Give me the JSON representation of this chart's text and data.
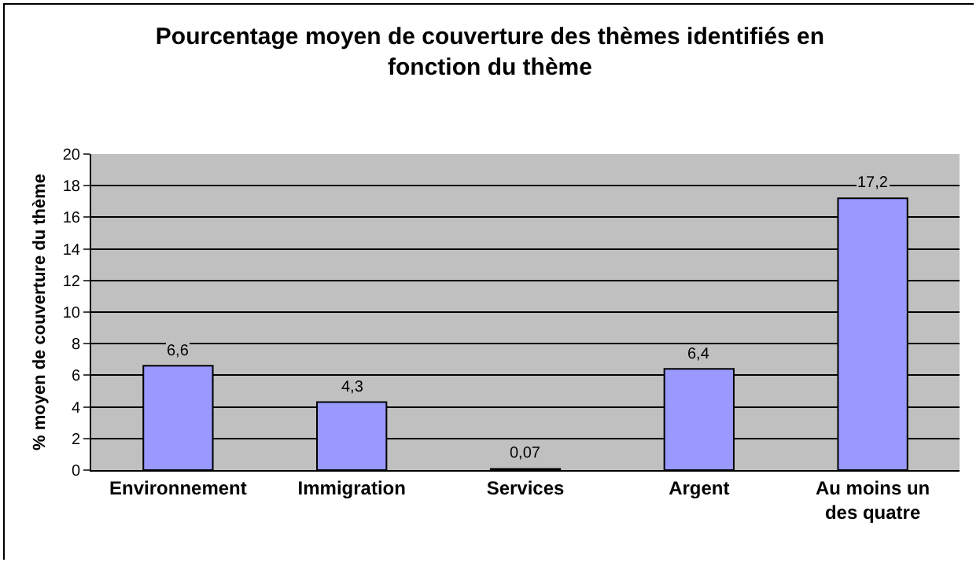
{
  "chart_data": {
    "type": "bar",
    "title": "Pourcentage moyen de couverture des thèmes identifiés en fonction du thème",
    "ylabel": "% moyen de couverture du thème",
    "categories": [
      "Environnement",
      "Immigration",
      "Services",
      "Argent",
      "Au moins un des quatre"
    ],
    "values": [
      6.6,
      4.3,
      0.07,
      6.4,
      17.2
    ],
    "value_labels": [
      "6,6",
      "4,3",
      "0,07",
      "6,4",
      "17,2"
    ],
    "color": "#9999ff",
    "ylim": [
      0,
      20
    ],
    "yticks": [
      0,
      2,
      4,
      6,
      8,
      10,
      12,
      14,
      16,
      18,
      20
    ],
    "grid": "y"
  }
}
